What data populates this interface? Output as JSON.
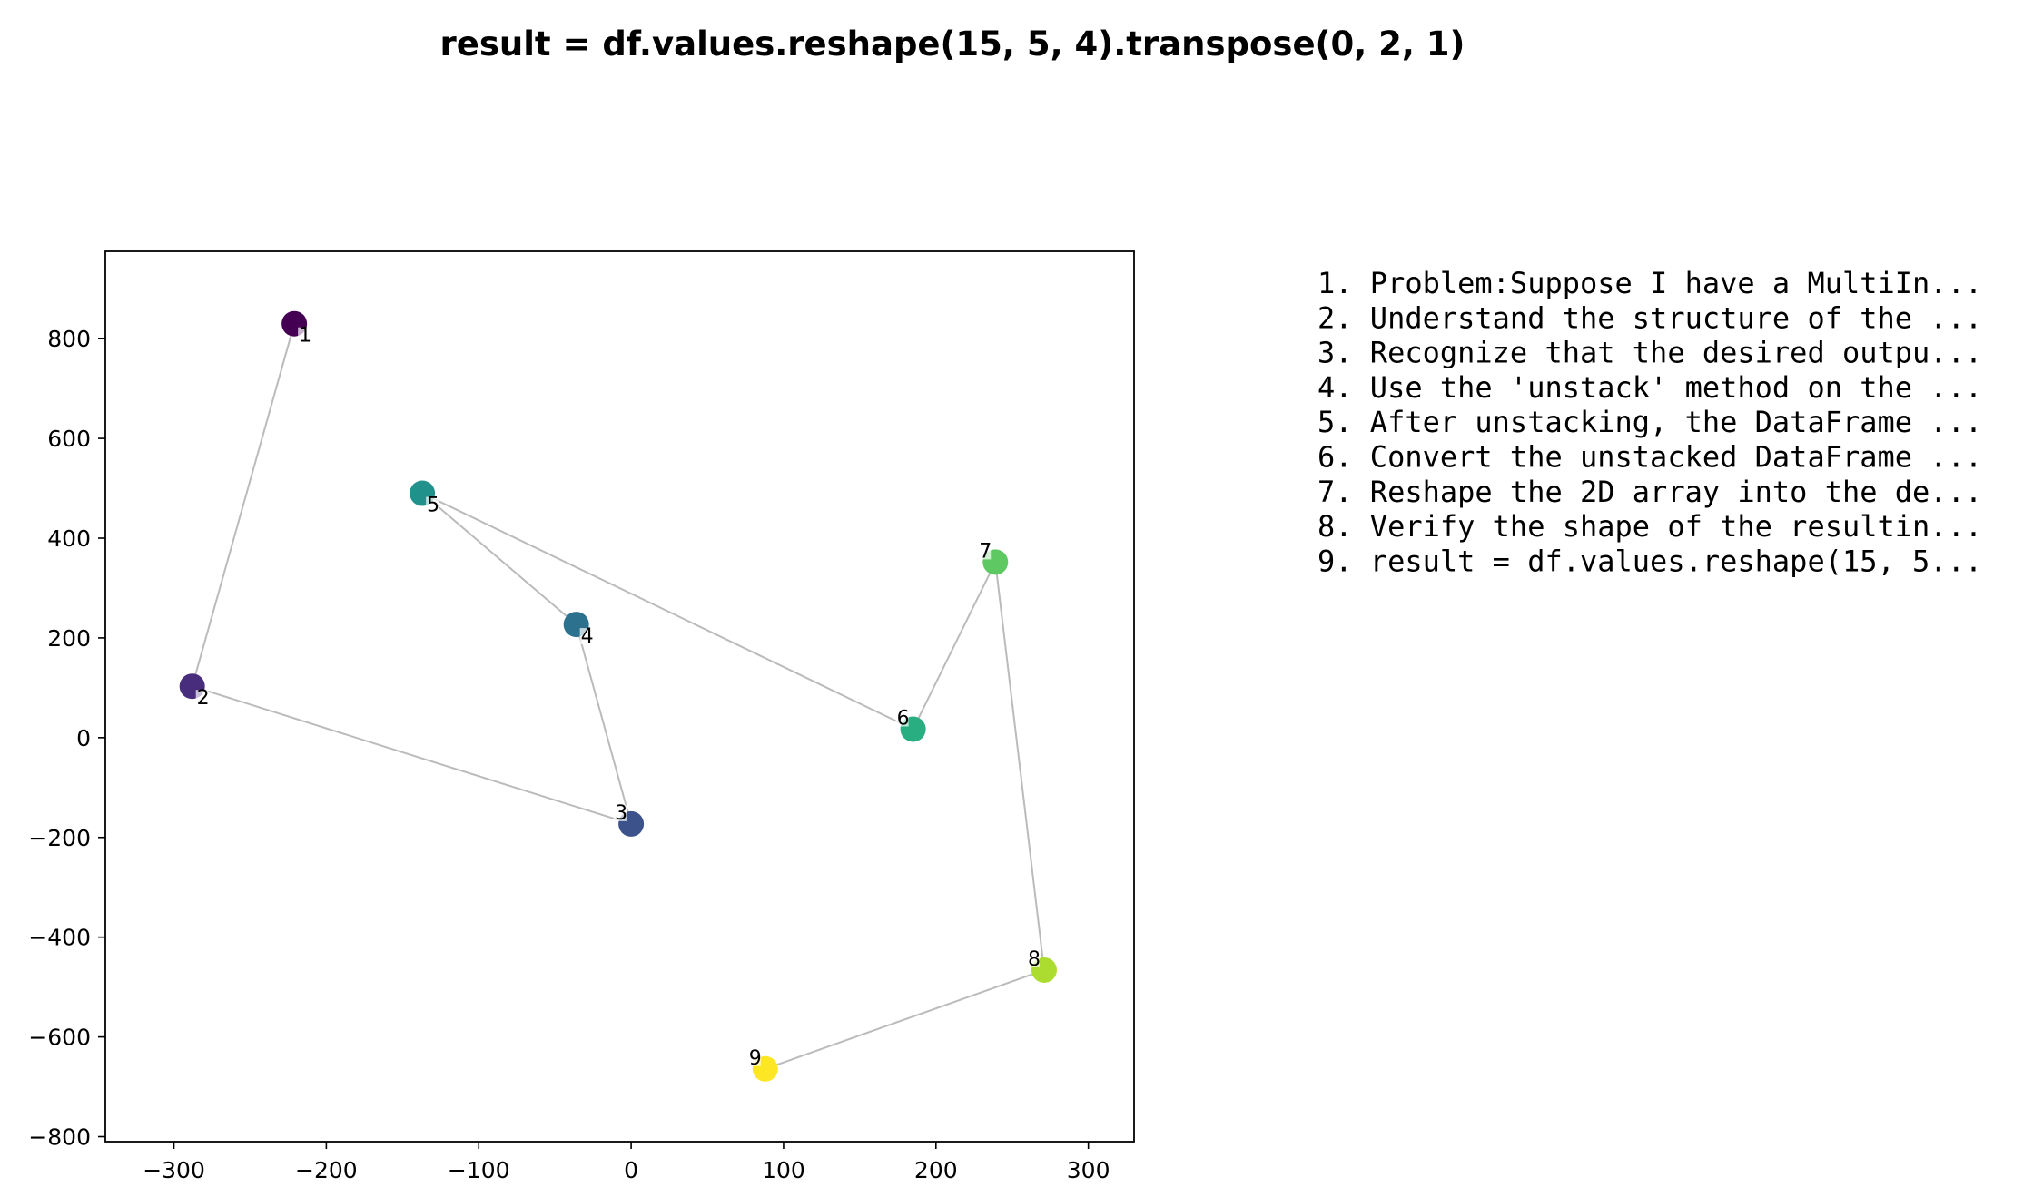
{
  "chart_data": {
    "type": "scatter",
    "title": "result = df.values.reshape(15, 5, 4).transpose(0, 2, 1)",
    "xlabel": "",
    "ylabel": "",
    "xlim": [
      -345,
      330
    ],
    "ylim": [
      -810,
      975
    ],
    "xticks": [
      -300,
      -200,
      -100,
      0,
      100,
      200,
      300
    ],
    "yticks": [
      -800,
      -600,
      -400,
      -200,
      0,
      200,
      400,
      600,
      800
    ],
    "grid": false,
    "connect_points": true,
    "line_color": "#bbbbbb",
    "colormap": "viridis",
    "points": [
      {
        "label": "1",
        "x": -221,
        "y": 830,
        "color": "#440154",
        "label_side": "right"
      },
      {
        "label": "2",
        "x": -288,
        "y": 103,
        "color": "#472d7b",
        "label_side": "right"
      },
      {
        "label": "3",
        "x": 0,
        "y": -173,
        "color": "#3b528b",
        "label_side": "left"
      },
      {
        "label": "4",
        "x": -36,
        "y": 227,
        "color": "#2c728e",
        "label_side": "right"
      },
      {
        "label": "5",
        "x": -137,
        "y": 490,
        "color": "#21918c",
        "label_side": "right"
      },
      {
        "label": "6",
        "x": 185,
        "y": 17,
        "color": "#28ae80",
        "label_side": "left"
      },
      {
        "label": "7",
        "x": 239,
        "y": 352,
        "color": "#5ec962",
        "label_side": "left"
      },
      {
        "label": "8",
        "x": 271,
        "y": -466,
        "color": "#addc30",
        "label_side": "left"
      },
      {
        "label": "9",
        "x": 88,
        "y": -664,
        "color": "#fde725",
        "label_side": "left"
      }
    ]
  },
  "steps": [
    "1. Problem:Suppose I have a MultiIn...",
    "2. Understand the structure of the ...",
    "3. Recognize that the desired outpu...",
    "4. Use the 'unstack' method on the ...",
    "5. After unstacking, the DataFrame ...",
    "6. Convert the unstacked DataFrame ...",
    "7. Reshape the 2D array into the de...",
    "8. Verify the shape of the resultin...",
    "9. result = df.values.reshape(15, 5..."
  ]
}
